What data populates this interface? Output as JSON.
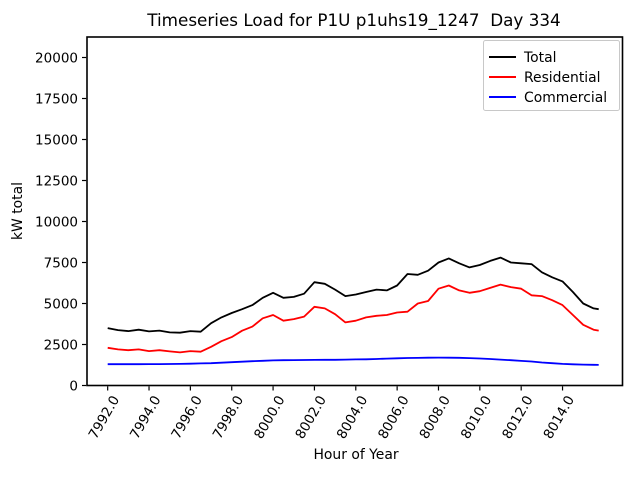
{
  "chart_data": {
    "type": "line",
    "title": "Timeseries Load for P1U p1uhs19_1247  Day 334",
    "xlabel": "Hour of Year",
    "ylabel": "kW total",
    "xlim": [
      7991.0,
      8016.9
    ],
    "ylim": [
      0,
      21250
    ],
    "grid": false,
    "x_tick_rotation_deg": 60,
    "x_tick_values": [
      7992,
      7994,
      7996,
      7998,
      8000,
      8002,
      8004,
      8006,
      8008,
      8010,
      8012,
      8014
    ],
    "x_tick_labels": [
      "7992.0",
      "7994.0",
      "7996.0",
      "7998.0",
      "8000.0",
      "8002.0",
      "8004.0",
      "8006.0",
      "8008.0",
      "8010.0",
      "8012.0",
      "8014.0"
    ],
    "y_tick_values": [
      0,
      2500,
      5000,
      7500,
      10000,
      12500,
      15000,
      17500,
      20000
    ],
    "y_tick_labels": [
      "0",
      "2500",
      "5000",
      "7500",
      "10000",
      "12500",
      "15000",
      "17500",
      "20000"
    ],
    "legend": {
      "location": "upper right",
      "border_color": "#c8c8c8"
    },
    "x": [
      7992,
      7992.5,
      7993,
      7993.5,
      7994,
      7994.5,
      7995,
      7995.5,
      7996,
      7996.5,
      7997,
      7997.5,
      7998,
      7998.5,
      7999,
      7999.5,
      8000,
      8000.5,
      8001,
      8001.5,
      8002,
      8002.5,
      8003,
      8003.5,
      8004,
      8004.5,
      8005,
      8005.5,
      8006,
      8006.5,
      8007,
      8007.5,
      8008,
      8008.5,
      8009,
      8009.5,
      8010,
      8010.5,
      8011,
      8011.5,
      8012,
      8012.5,
      8013,
      8013.5,
      8014,
      8014.5,
      8015,
      8015.5,
      8015.75
    ],
    "series": [
      {
        "name": "Total",
        "color": "#000000",
        "values": [
          3500,
          3380,
          3320,
          3400,
          3300,
          3350,
          3240,
          3220,
          3320,
          3280,
          3800,
          4150,
          4420,
          4650,
          4900,
          5350,
          5650,
          5350,
          5400,
          5600,
          6300,
          6200,
          5850,
          5450,
          5550,
          5700,
          5850,
          5800,
          6100,
          6800,
          6750,
          7000,
          7500,
          7750,
          7450,
          7200,
          7350,
          7600,
          7800,
          7500,
          7450,
          7400,
          6900,
          6600,
          6350,
          5700,
          5000,
          4700,
          4650
        ]
      },
      {
        "name": "Residential",
        "color": "#ff0000",
        "values": [
          2300,
          2200,
          2150,
          2200,
          2100,
          2150,
          2080,
          2020,
          2100,
          2060,
          2360,
          2700,
          2950,
          3340,
          3590,
          4100,
          4300,
          3950,
          4050,
          4200,
          4800,
          4700,
          4350,
          3850,
          3950,
          4150,
          4250,
          4300,
          4450,
          4500,
          5000,
          5150,
          5900,
          6100,
          5800,
          5650,
          5750,
          5950,
          6150,
          6000,
          5900,
          5500,
          5450,
          5200,
          4900,
          4300,
          3700,
          3400,
          3350
        ]
      },
      {
        "name": "Commercial",
        "color": "#0000ff",
        "values": [
          1300,
          1298,
          1298,
          1300,
          1302,
          1305,
          1310,
          1320,
          1330,
          1345,
          1360,
          1390,
          1420,
          1450,
          1480,
          1505,
          1530,
          1540,
          1550,
          1555,
          1560,
          1565,
          1570,
          1580,
          1590,
          1600,
          1615,
          1640,
          1660,
          1675,
          1685,
          1695,
          1700,
          1698,
          1690,
          1670,
          1645,
          1615,
          1580,
          1540,
          1500,
          1465,
          1400,
          1360,
          1320,
          1295,
          1275,
          1260,
          1255
        ]
      }
    ]
  }
}
